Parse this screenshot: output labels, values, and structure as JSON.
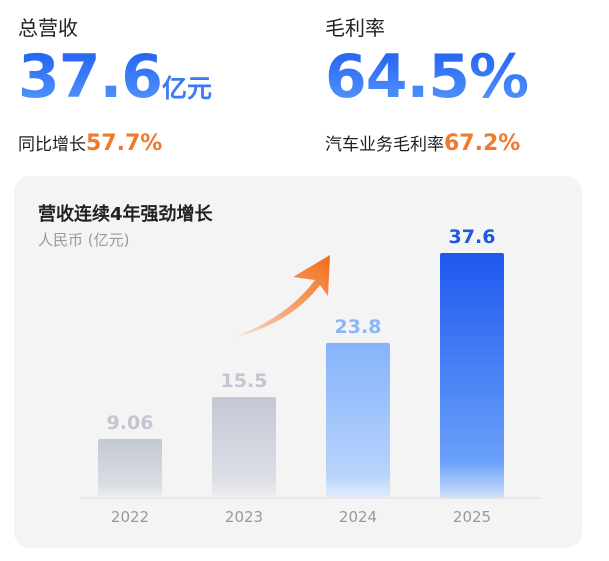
{
  "kpis": [
    {
      "label": "总营收",
      "value": "37.6",
      "unit": "亿元",
      "sub_label": "同比增长",
      "sub_value": "57.7%"
    },
    {
      "label": "毛利率",
      "value": "64.5%",
      "unit": "",
      "sub_label": "汽车业务毛利率",
      "sub_value": "67.2%"
    }
  ],
  "chart_data": {
    "type": "bar",
    "title": "营收连续4年强劲增长",
    "ylabel": "人民币 (亿元)",
    "categories": [
      "2022",
      "2023",
      "2024",
      "2025"
    ],
    "values": [
      9.06,
      15.5,
      23.8,
      37.6
    ],
    "value_labels": [
      "9.06",
      "15.5",
      "23.8",
      "37.6"
    ],
    "ylim": [
      0,
      37.6
    ],
    "grid": false,
    "colors": {
      "bar_grey": "#c3c7d2",
      "bar_light_blue": "#85b3fb",
      "bar_blue": "#1e58f0",
      "arrow": "#f26a1b"
    }
  }
}
